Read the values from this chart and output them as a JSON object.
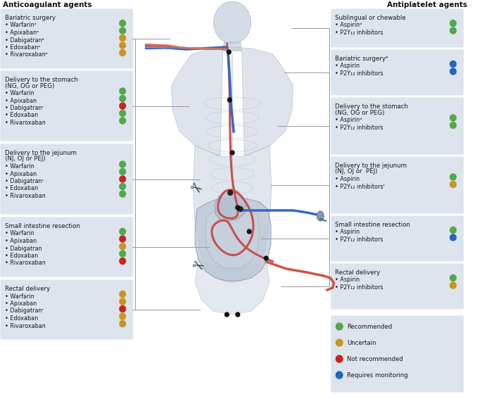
{
  "title_left": "Anticoagulant agents",
  "title_right": "Antiplatelet agents",
  "bg_color": "#ffffff",
  "box_bg": "#dde4ed",
  "colors": {
    "green": "#52a84a",
    "orange": "#c8961e",
    "red": "#cc2222",
    "blue": "#2266bb"
  },
  "left_sections": [
    {
      "title": "Bariatric surgery",
      "items": [
        {
          "name": "Warfarinᵃ",
          "color": "green"
        },
        {
          "name": "Apixabanᵃ",
          "color": "green"
        },
        {
          "name": "Dabigatranᵇ",
          "color": "orange"
        },
        {
          "name": "Edoxabanᵃ",
          "color": "orange"
        },
        {
          "name": "Rivaroxabanᵃ",
          "color": "orange"
        }
      ]
    },
    {
      "title": "Delivery to the stomach\n(NG, OG or PEG)",
      "items": [
        {
          "name": "Warfarin",
          "color": "green"
        },
        {
          "name": "Apixaban",
          "color": "green"
        },
        {
          "name": "Dabigatranᶜ",
          "color": "red"
        },
        {
          "name": "Edoxaban",
          "color": "green"
        },
        {
          "name": "Rivaroxaban",
          "color": "green"
        }
      ]
    },
    {
      "title": "Delivery to the jejunum\n(NJ, OJ or PEJ)",
      "items": [
        {
          "name": "Warfarin",
          "color": "green"
        },
        {
          "name": "Apixaban",
          "color": "green"
        },
        {
          "name": "Dabigatranᶜ",
          "color": "red"
        },
        {
          "name": "Edoxaban",
          "color": "green"
        },
        {
          "name": "Rivaroxaban",
          "color": "green"
        }
      ]
    },
    {
      "title": "Small intestine resection",
      "items": [
        {
          "name": "Warfarin",
          "color": "green"
        },
        {
          "name": "Apixaban",
          "color": "red"
        },
        {
          "name": "Dabigatran",
          "color": "orange"
        },
        {
          "name": "Edoxaban",
          "color": "green"
        },
        {
          "name": "Rivaroxaban",
          "color": "red"
        }
      ]
    },
    {
      "title": "Rectal delivery",
      "items": [
        {
          "name": "Warfarin",
          "color": "orange"
        },
        {
          "name": "Apixaban",
          "color": "orange"
        },
        {
          "name": "Dabigatranᶜ",
          "color": "red"
        },
        {
          "name": "Edoxaban",
          "color": "orange"
        },
        {
          "name": "Rivaroxaban",
          "color": "orange"
        }
      ]
    }
  ],
  "right_sections": [
    {
      "title": "Sublingual or chewable",
      "items": [
        {
          "name": "Aspirinᵈ",
          "color": "green"
        },
        {
          "name": "P2Y₁₂ inhibitors",
          "color": "green"
        }
      ]
    },
    {
      "title": "Bariatric surgeryᵉ",
      "items": [
        {
          "name": "Aspirin",
          "color": "blue"
        },
        {
          "name": "P2Y₁₂ inhibitors",
          "color": "blue"
        }
      ]
    },
    {
      "title": "Delivery to the stomach\n(NG, OG or PEG)",
      "items": [
        {
          "name": "Aspirinᵈ",
          "color": "green"
        },
        {
          "name": "P2Y₁₂ inhibitors",
          "color": "green"
        }
      ]
    },
    {
      "title": "Delivery to the jejunum\n(NJ, OJ or  PEJ)",
      "items": [
        {
          "name": "Aspirin",
          "color": "green"
        },
        {
          "name": "P2Y₁₂ inhibitorsᶠ",
          "color": "orange"
        }
      ]
    },
    {
      "title": "Small intestine resection",
      "items": [
        {
          "name": "Aspirin",
          "color": "green"
        },
        {
          "name": "P2Y₁₂ inhibitors",
          "color": "blue"
        }
      ]
    },
    {
      "title": "Rectal delivery",
      "items": [
        {
          "name": "Aspirin",
          "color": "green"
        },
        {
          "name": "P2Y₁₂ inhibitors",
          "color": "orange"
        }
      ]
    }
  ],
  "legend": [
    {
      "label": "Recommended",
      "color": "green"
    },
    {
      "label": "Uncertain",
      "color": "orange"
    },
    {
      "label": "Not recommended",
      "color": "red"
    },
    {
      "label": "Requires monitoring",
      "color": "blue"
    }
  ]
}
